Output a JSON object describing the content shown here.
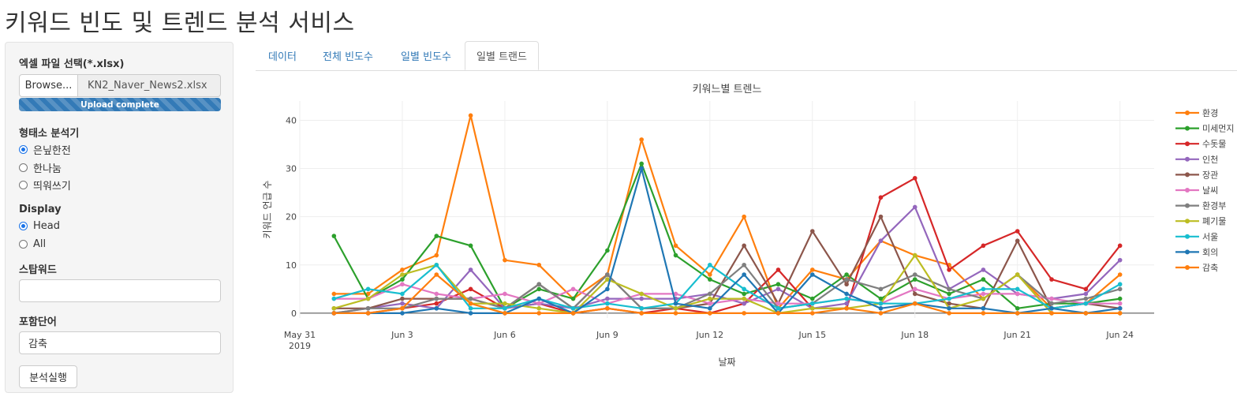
{
  "app": {
    "title": "키워드 빈도 및 트렌드 분석 서비스"
  },
  "sidebar": {
    "file_label": "엑셀 파일 선택(*.xlsx)",
    "browse_label": "Browse...",
    "file_name": "KN2_Naver_News2.xlsx",
    "upload_status": "Upload complete",
    "upload_progress": 1.0,
    "analyzer_label": "형태소 분석기",
    "analyzer_options": [
      "은닢한전",
      "한나눔",
      "띄워쓰기"
    ],
    "analyzer_selected": "은닢한전",
    "display_label": "Display",
    "display_options": [
      "Head",
      "All"
    ],
    "display_selected": "Head",
    "stopword_label": "스탑워드",
    "stopword_value": "",
    "include_label": "포함단어",
    "include_value": "감축",
    "run_button": "분석실행"
  },
  "tabs": [
    {
      "label": "데이터",
      "active": false
    },
    {
      "label": "전체 빈도수",
      "active": false
    },
    {
      "label": "일별 빈도수",
      "active": false
    },
    {
      "label": "일별 트랜드",
      "active": true
    }
  ],
  "chart_data": {
    "type": "line",
    "title": "키워느별 트렌느",
    "xlabel": "날짜",
    "ylabel": "키워드 언급 수",
    "x": [
      "2019-06-01",
      "2019-06-02",
      "2019-06-03",
      "2019-06-04",
      "2019-06-05",
      "2019-06-06",
      "2019-06-07",
      "2019-06-08",
      "2019-06-09",
      "2019-06-10",
      "2019-06-11",
      "2019-06-12",
      "2019-06-13",
      "2019-06-14",
      "2019-06-15",
      "2019-06-16",
      "2019-06-17",
      "2019-06-18",
      "2019-06-19",
      "2019-06-20",
      "2019-06-21",
      "2019-06-22",
      "2019-06-23",
      "2019-06-24"
    ],
    "xticks": [
      {
        "date": "2019-05-31",
        "label": "May 31",
        "label2": "2019"
      },
      {
        "date": "2019-06-03",
        "label": "Jun 3"
      },
      {
        "date": "2019-06-06",
        "label": "Jun 6"
      },
      {
        "date": "2019-06-09",
        "label": "Jun 9"
      },
      {
        "date": "2019-06-12",
        "label": "Jun 12"
      },
      {
        "date": "2019-06-15",
        "label": "Jun 15"
      },
      {
        "date": "2019-06-18",
        "label": "Jun 18"
      },
      {
        "date": "2019-06-21",
        "label": "Jun 21"
      },
      {
        "date": "2019-06-24",
        "label": "Jun 24"
      }
    ],
    "xlim": [
      "2019-05-31",
      "2019-06-25"
    ],
    "ylim": [
      -1,
      44
    ],
    "yticks": [
      0,
      10,
      20,
      30,
      40
    ],
    "grid": true,
    "legend_position": "right",
    "series": [
      {
        "name": "환경",
        "color": "#ff7f0e",
        "values": [
          4,
          4,
          9,
          12,
          41,
          11,
          10,
          3,
          8,
          36,
          14,
          8,
          20,
          1,
          9,
          7,
          15,
          12,
          10,
          3,
          8,
          1,
          2,
          8
        ]
      },
      {
        "name": "미세먼지",
        "color": "#2ca02c",
        "values": [
          16,
          3,
          7,
          16,
          14,
          1,
          5,
          3,
          13,
          31,
          12,
          7,
          4,
          6,
          3,
          8,
          3,
          7,
          4,
          7,
          1,
          2,
          2,
          3
        ]
      },
      {
        "name": "수돗물",
        "color": "#d62728",
        "values": [
          0,
          0,
          1,
          2,
          5,
          1,
          2,
          0,
          1,
          0,
          1,
          0,
          2,
          9,
          1,
          1,
          24,
          28,
          9,
          14,
          17,
          7,
          5,
          14
        ]
      },
      {
        "name": "인천",
        "color": "#9467bd",
        "values": [
          0,
          1,
          2,
          1,
          9,
          1,
          2,
          1,
          3,
          3,
          3,
          4,
          2,
          5,
          1,
          2,
          15,
          22,
          5,
          9,
          4,
          3,
          4,
          11
        ]
      },
      {
        "name": "장관",
        "color": "#8c564b",
        "values": [
          1,
          1,
          3,
          3,
          3,
          1,
          6,
          1,
          8,
          1,
          1,
          2,
          14,
          2,
          17,
          6,
          20,
          4,
          2,
          1,
          15,
          1,
          2,
          1
        ]
      },
      {
        "name": "날씨",
        "color": "#e377c2",
        "values": [
          3,
          3,
          6,
          4,
          3,
          4,
          2,
          5,
          2,
          4,
          4,
          2,
          3,
          2,
          2,
          3,
          2,
          5,
          3,
          4,
          4,
          3,
          2,
          2
        ]
      },
      {
        "name": "환경부",
        "color": "#7f7f7f",
        "values": [
          0,
          1,
          1,
          3,
          3,
          1,
          6,
          1,
          8,
          1,
          1,
          4,
          10,
          1,
          2,
          7,
          5,
          8,
          5,
          3,
          8,
          2,
          3,
          5
        ]
      },
      {
        "name": "폐기물",
        "color": "#bcbd22",
        "values": [
          1,
          3,
          8,
          10,
          2,
          2,
          1,
          0,
          7,
          4,
          1,
          3,
          3,
          0,
          1,
          1,
          2,
          12,
          1,
          3,
          8,
          0,
          0,
          0
        ]
      },
      {
        "name": "서울",
        "color": "#17becf",
        "values": [
          3,
          5,
          4,
          10,
          1,
          1,
          3,
          1,
          2,
          1,
          2,
          10,
          5,
          1,
          2,
          3,
          2,
          2,
          3,
          5,
          5,
          1,
          2,
          6
        ]
      },
      {
        "name": "회의",
        "color": "#1f77b4",
        "values": [
          0,
          0,
          0,
          1,
          0,
          0,
          3,
          0,
          5,
          30,
          2,
          1,
          8,
          0,
          8,
          4,
          1,
          2,
          1,
          1,
          0,
          1,
          0,
          1
        ]
      },
      {
        "name": "감축",
        "color": "#ff7f0e",
        "values": [
          0,
          0,
          1,
          8,
          2,
          0,
          0,
          0,
          1,
          0,
          0,
          0,
          0,
          0,
          0,
          1,
          0,
          2,
          0,
          0,
          0,
          0,
          0,
          0
        ]
      }
    ]
  }
}
